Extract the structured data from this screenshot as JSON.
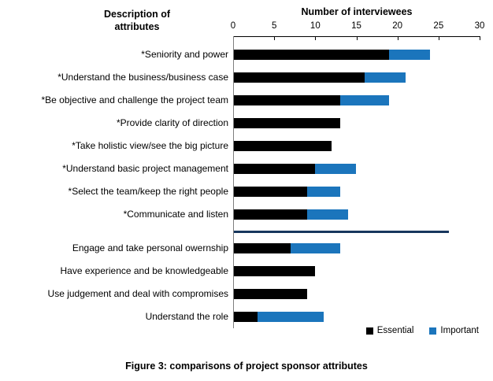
{
  "caption": "Figure 3: comparisons of project sponsor attributes",
  "chart_data": {
    "type": "bar",
    "orientation": "horizontal",
    "stacked": true,
    "title": "Number of interviewees",
    "ylabel": "Description of attributes",
    "xlim": [
      0,
      30
    ],
    "xticks": [
      0,
      5,
      10,
      15,
      20,
      25,
      30
    ],
    "grid": false,
    "legend_position": "bottom-right",
    "categories": [
      "*Seniority and power",
      "*Understand the business/business case",
      "*Be objective and challenge the project team",
      "*Provide clarity of direction",
      "*Take holistic view/see the big picture",
      "*Understand basic project management",
      "*Select the team/keep the right people",
      "*Communicate and listen",
      "Engage and take personal owernship",
      "Have experience and be knowledgeable",
      "Use judgement and deal with compromises",
      "Understand the role"
    ],
    "series": [
      {
        "name": "Essential",
        "color": "#000000",
        "values": [
          19,
          16,
          13,
          13,
          12,
          10,
          9,
          9,
          7,
          10,
          9,
          3
        ]
      },
      {
        "name": "Important",
        "color": "#1b75bc",
        "values": [
          5,
          5,
          6,
          0,
          0,
          5,
          4,
          5,
          6,
          0,
          0,
          8
        ]
      }
    ],
    "totals": [
      24,
      21,
      19,
      13,
      12,
      15,
      13,
      14,
      13,
      10,
      9,
      11
    ],
    "separator_after_index": 7,
    "separator_value": 26.3,
    "separator_color": "#17375d"
  }
}
